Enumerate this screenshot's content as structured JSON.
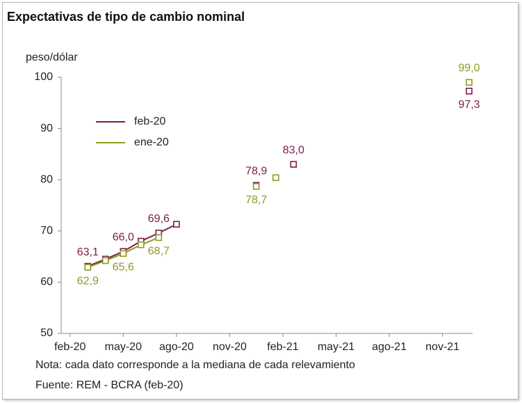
{
  "chart_data": {
    "type": "line",
    "title": "Expectativas de tipo de cambio nominal",
    "y_label": "peso/dólar",
    "x": [
      2,
      3,
      4,
      5,
      6,
      7,
      null,
      11.5,
      null,
      12.6,
      13.6,
      null,
      23.5
    ],
    "xlim": [
      0.5,
      23.7
    ],
    "xticks": [
      {
        "value": 1,
        "label": "feb-20"
      },
      {
        "value": 4,
        "label": "may-20"
      },
      {
        "value": 7,
        "label": "ago-20"
      },
      {
        "value": 10,
        "label": "nov-20"
      },
      {
        "value": 13,
        "label": "feb-21"
      },
      {
        "value": 16,
        "label": "may-21"
      },
      {
        "value": 19,
        "label": "ago-21"
      },
      {
        "value": 22,
        "label": "nov-21"
      }
    ],
    "ylim": [
      50,
      100
    ],
    "yticks": [
      50,
      60,
      70,
      80,
      90,
      100
    ],
    "grid": false,
    "markers": "square",
    "series": [
      {
        "name": "feb-20",
        "color": "#7b1a4a",
        "values": [
          63.1,
          64.5,
          66.0,
          68.0,
          69.6,
          71.3,
          null,
          78.9,
          null,
          null,
          83.0,
          null,
          97.3
        ],
        "value_labels": [
          "63,1",
          null,
          "66,0",
          null,
          "69,6",
          null,
          null,
          "78,9",
          null,
          null,
          "83,0",
          null,
          "97,3"
        ]
      },
      {
        "name": "ene-20",
        "color": "#8f9a1f",
        "values": [
          62.9,
          64.2,
          65.6,
          67.3,
          68.7,
          null,
          null,
          78.7,
          null,
          80.4,
          null,
          null,
          99.0
        ],
        "value_labels": [
          "62,9",
          null,
          "65,6",
          null,
          "68,7",
          null,
          null,
          "78,7",
          null,
          null,
          null,
          null,
          "99,0"
        ]
      }
    ],
    "notes": [
      "Nota: cada dato corresponde a la mediana de cada relevamiento",
      "Fuente: REM - BCRA (feb-20)"
    ]
  }
}
